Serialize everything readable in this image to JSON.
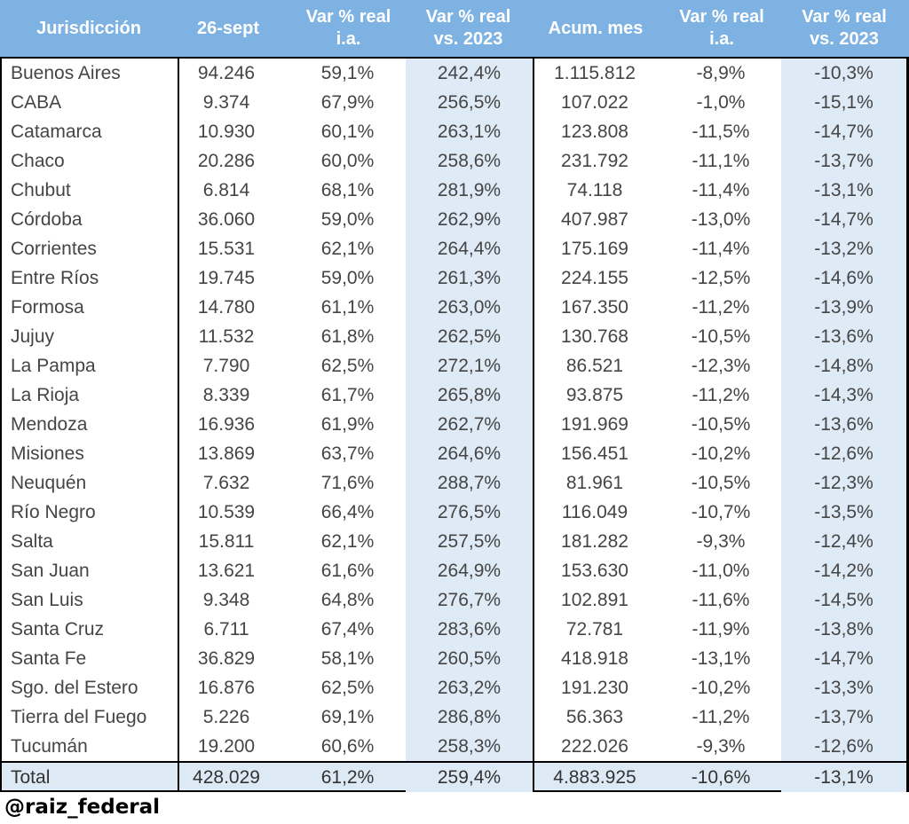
{
  "chart_data": {
    "type": "table",
    "columns": [
      {
        "id": "jurisdiccion",
        "label": "Jurisdicción",
        "sub": ""
      },
      {
        "id": "dia-26-sept",
        "label": "26-sept",
        "sub": ""
      },
      {
        "id": "var-real-ia-dia",
        "label": "Var % real",
        "sub": "i.a."
      },
      {
        "id": "var-real-2023-dia",
        "label": "Var % real",
        "sub": "vs. 2023"
      },
      {
        "id": "acum-mes",
        "label": "Acum. mes",
        "sub": ""
      },
      {
        "id": "var-real-ia-mes",
        "label": "Var % real",
        "sub": "i.a."
      },
      {
        "id": "var-real-2023-mes",
        "label": "Var % real",
        "sub": "vs. 2023"
      }
    ],
    "rows": [
      [
        "Buenos Aires",
        "94.246",
        "59,1%",
        "242,4%",
        "1.115.812",
        "-8,9%",
        "-10,3%"
      ],
      [
        "CABA",
        "9.374",
        "67,9%",
        "256,5%",
        "107.022",
        "-1,0%",
        "-15,1%"
      ],
      [
        "Catamarca",
        "10.930",
        "60,1%",
        "263,1%",
        "123.808",
        "-11,5%",
        "-14,7%"
      ],
      [
        "Chaco",
        "20.286",
        "60,0%",
        "258,6%",
        "231.792",
        "-11,1%",
        "-13,7%"
      ],
      [
        "Chubut",
        "6.814",
        "68,1%",
        "281,9%",
        "74.118",
        "-11,4%",
        "-13,1%"
      ],
      [
        "Córdoba",
        "36.060",
        "59,0%",
        "262,9%",
        "407.987",
        "-13,0%",
        "-14,7%"
      ],
      [
        "Corrientes",
        "15.531",
        "62,1%",
        "264,4%",
        "175.169",
        "-11,4%",
        "-13,2%"
      ],
      [
        "Entre Ríos",
        "19.745",
        "59,0%",
        "261,3%",
        "224.155",
        "-12,5%",
        "-14,6%"
      ],
      [
        "Formosa",
        "14.780",
        "61,1%",
        "263,0%",
        "167.350",
        "-11,2%",
        "-13,9%"
      ],
      [
        "Jujuy",
        "11.532",
        "61,8%",
        "262,5%",
        "130.768",
        "-10,5%",
        "-13,6%"
      ],
      [
        "La Pampa",
        "7.790",
        "62,5%",
        "272,1%",
        "86.521",
        "-12,3%",
        "-14,8%"
      ],
      [
        "La Rioja",
        "8.339",
        "61,7%",
        "265,8%",
        "93.875",
        "-11,2%",
        "-14,3%"
      ],
      [
        "Mendoza",
        "16.936",
        "61,9%",
        "262,7%",
        "191.969",
        "-10,5%",
        "-13,6%"
      ],
      [
        "Misiones",
        "13.869",
        "63,7%",
        "264,6%",
        "156.451",
        "-10,2%",
        "-12,6%"
      ],
      [
        "Neuquén",
        "7.632",
        "71,6%",
        "288,7%",
        "81.961",
        "-10,5%",
        "-12,3%"
      ],
      [
        "Río Negro",
        "10.539",
        "66,4%",
        "276,5%",
        "116.049",
        "-10,7%",
        "-13,5%"
      ],
      [
        "Salta",
        "15.811",
        "62,1%",
        "257,5%",
        "181.282",
        "-9,3%",
        "-12,4%"
      ],
      [
        "San Juan",
        "13.621",
        "61,6%",
        "264,9%",
        "153.630",
        "-11,0%",
        "-14,2%"
      ],
      [
        "San Luis",
        "9.348",
        "64,8%",
        "276,7%",
        "102.891",
        "-11,6%",
        "-14,5%"
      ],
      [
        "Santa Cruz",
        "6.711",
        "67,4%",
        "283,6%",
        "72.781",
        "-11,9%",
        "-13,8%"
      ],
      [
        "Santa Fe",
        "36.829",
        "58,1%",
        "260,5%",
        "418.918",
        "-13,1%",
        "-14,7%"
      ],
      [
        "Sgo. del Estero",
        "16.876",
        "62,5%",
        "263,2%",
        "191.230",
        "-10,2%",
        "-13,3%"
      ],
      [
        "Tierra del Fuego",
        "5.226",
        "69,1%",
        "286,8%",
        "56.363",
        "-11,2%",
        "-13,7%"
      ],
      [
        "Tucumán",
        "19.200",
        "60,6%",
        "258,3%",
        "222.026",
        "-9,3%",
        "-12,6%"
      ]
    ],
    "total_row": [
      "Total",
      "428.029",
      "61,2%",
      "259,4%",
      "4.883.925",
      "-10,6%",
      "-13,1%"
    ]
  },
  "footer": {
    "handle": "@raiz_federal"
  },
  "colors": {
    "header_bg": "#7EB2E2",
    "shade_bg": "#DEEAF6",
    "total_bg": "#DDEAF6",
    "text": "#454545",
    "header_text": "#FFFFFF",
    "border": "#000000"
  }
}
